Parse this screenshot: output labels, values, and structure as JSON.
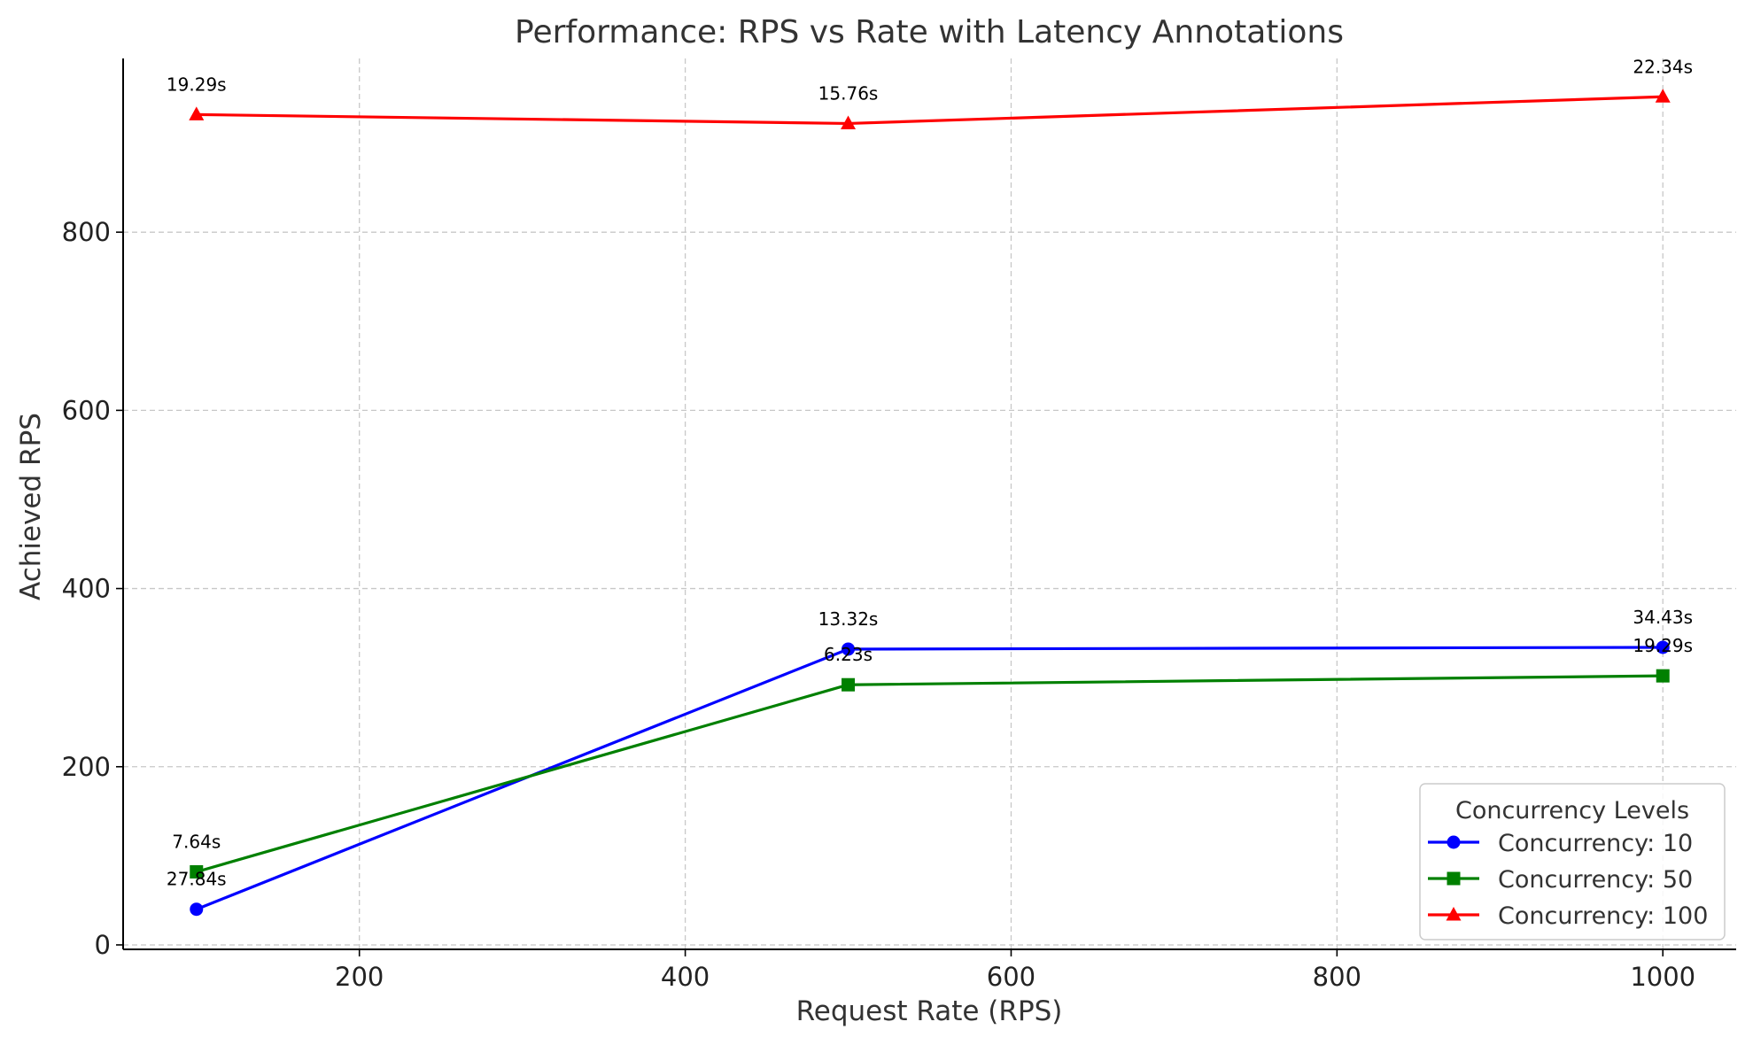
{
  "chart_data": {
    "type": "line",
    "title": "Performance: RPS vs Rate with Latency Annotations",
    "xlabel": "Request Rate (RPS)",
    "ylabel": "Achieved RPS",
    "xlim": [
      55,
      1045
    ],
    "ylim": [
      -5,
      995
    ],
    "xticks": [
      200,
      400,
      600,
      800,
      1000
    ],
    "yticks": [
      0,
      200,
      400,
      600,
      800
    ],
    "grid": true,
    "legend": {
      "title": "Concurrency Levels",
      "placement": "lower-right"
    },
    "series": [
      {
        "name": "Concurrency: 10",
        "color": "#0000ff",
        "marker": "circle",
        "x": [
          100,
          500,
          1000
        ],
        "y": [
          40,
          332,
          334
        ],
        "annotations": [
          "27.84s",
          "13.32s",
          "34.43s"
        ]
      },
      {
        "name": "Concurrency: 50",
        "color": "#008000",
        "marker": "square",
        "x": [
          100,
          500,
          1000
        ],
        "y": [
          82,
          292,
          302
        ],
        "annotations": [
          "7.64s",
          "6.23s",
          "19.29s"
        ]
      },
      {
        "name": "Concurrency: 100",
        "color": "#ff0000",
        "marker": "triangle",
        "x": [
          100,
          500,
          1000
        ],
        "y": [
          932,
          922,
          952
        ],
        "annotations": [
          "19.29s",
          "15.76s",
          "22.34s"
        ]
      }
    ]
  }
}
